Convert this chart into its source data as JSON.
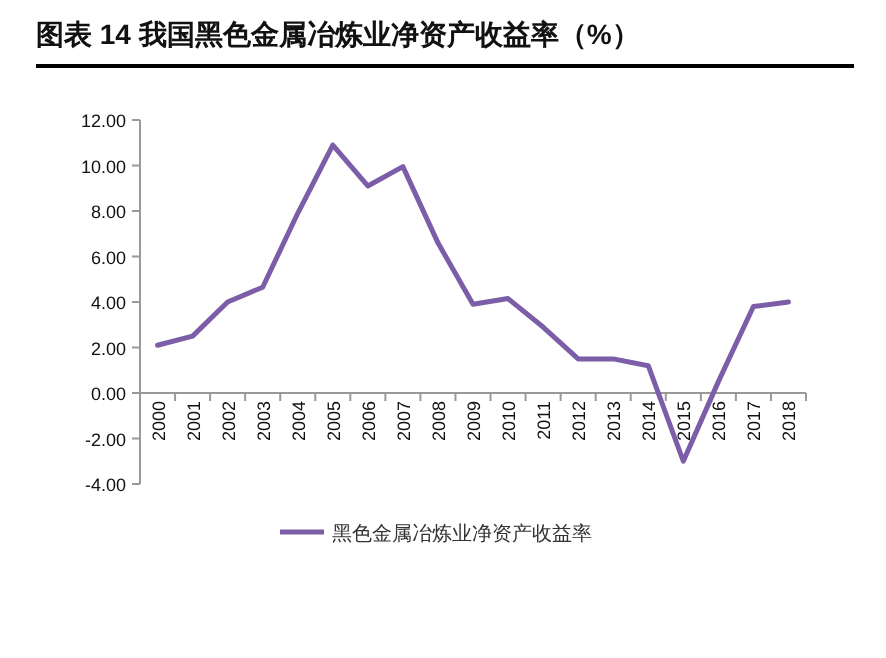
{
  "chart_data": {
    "type": "line",
    "title": "图表 14 我国黑色金属冶炼业净资产收益率（%）",
    "categories": [
      "2000",
      "2001",
      "2002",
      "2003",
      "2004",
      "2005",
      "2006",
      "2007",
      "2008",
      "2009",
      "2010",
      "2011",
      "2012",
      "2013",
      "2014",
      "2015",
      "2016",
      "2017",
      "2018"
    ],
    "series": [
      {
        "name": "黑色金属冶炼业净资产收益率",
        "color": "#7b5ea7",
        "values": [
          2.1,
          2.5,
          4.0,
          4.65,
          7.9,
          10.9,
          9.1,
          9.95,
          6.6,
          3.9,
          4.15,
          2.9,
          1.5,
          1.5,
          1.2,
          -3.0,
          0.5,
          3.8,
          4.0
        ]
      }
    ],
    "ylim": [
      -4,
      12
    ],
    "yticks": [
      {
        "value": -4,
        "label": "-4.00"
      },
      {
        "value": -2,
        "label": "-2.00"
      },
      {
        "value": 0,
        "label": "0.00"
      },
      {
        "value": 2,
        "label": "2.00"
      },
      {
        "value": 4,
        "label": "4.00"
      },
      {
        "value": 6,
        "label": "6.00"
      },
      {
        "value": 8,
        "label": "8.00"
      },
      {
        "value": 10,
        "label": "10.00"
      },
      {
        "value": 12,
        "label": "12.00"
      }
    ],
    "grid": false,
    "legend": "bottom",
    "marker": "none",
    "line_style": "solid"
  }
}
